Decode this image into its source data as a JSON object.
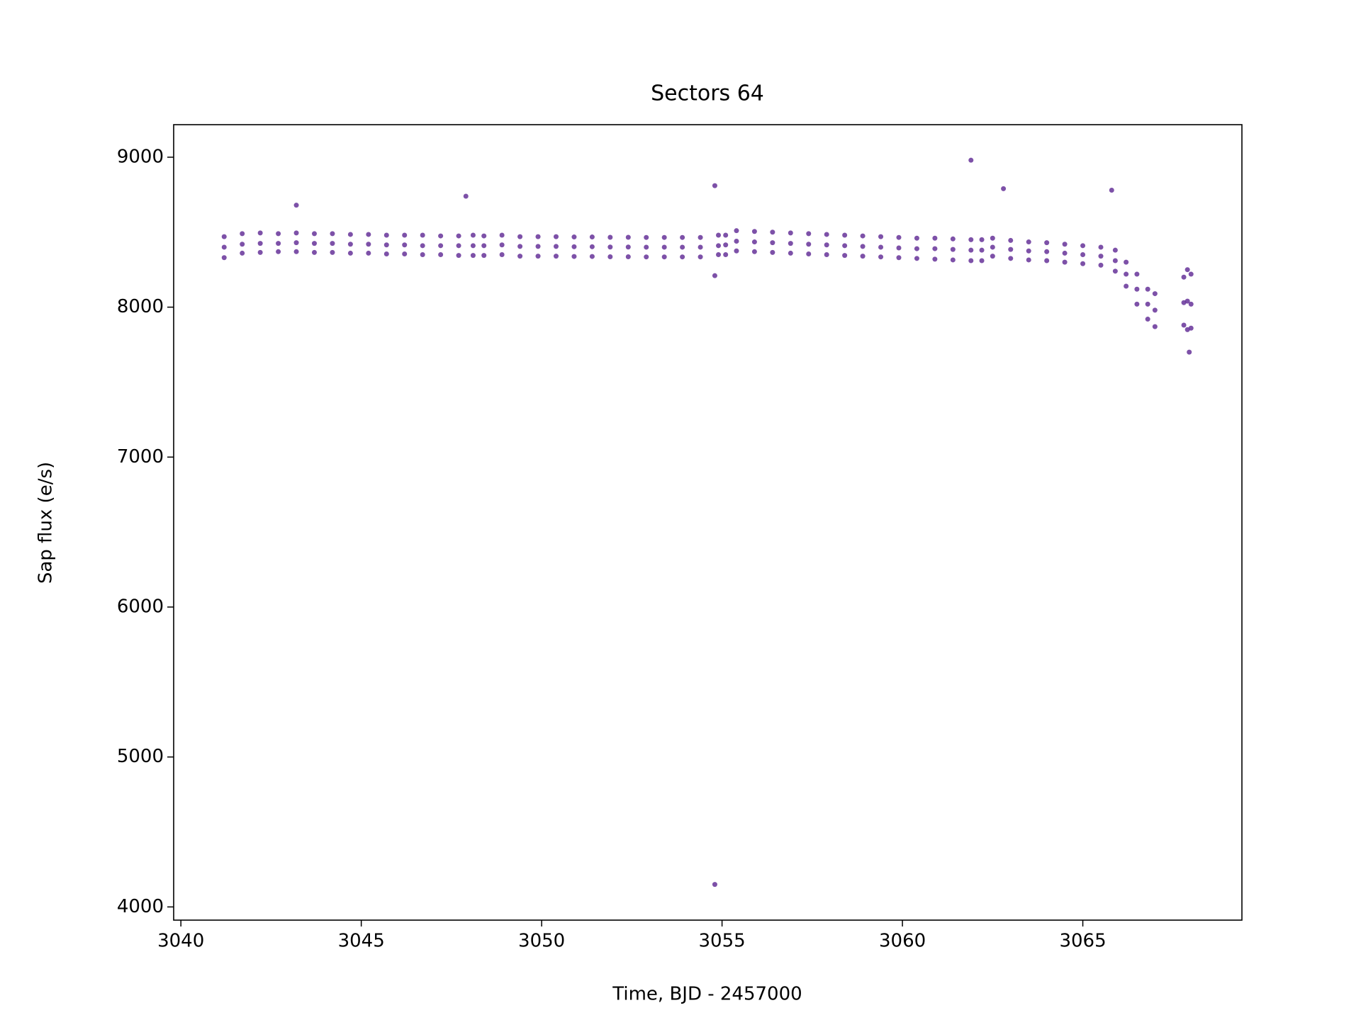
{
  "chart_data": {
    "type": "scatter",
    "title": "Sectors 64",
    "x_label": "Time, BJD - 2457000",
    "y_label": "Sap flux (e/s)",
    "xlim": [
      3039.8,
      3069.41
    ],
    "ylim": [
      3912,
      9217
    ],
    "xticks": [
      3040,
      3045,
      3050,
      3055,
      3060,
      3065
    ],
    "yticks": [
      4000,
      5000,
      6000,
      7000,
      8000,
      9000
    ],
    "color": "#663399",
    "x": [
      3041.2,
      3041.2,
      3041.2,
      3041.7,
      3041.7,
      3041.7,
      3042.2,
      3042.2,
      3042.2,
      3042.7,
      3042.7,
      3042.7,
      3043.2,
      3043.2,
      3043.2,
      3043.7,
      3043.7,
      3043.7,
      3044.2,
      3044.2,
      3044.2,
      3044.7,
      3044.7,
      3044.7,
      3045.2,
      3045.2,
      3045.2,
      3045.7,
      3045.7,
      3045.7,
      3046.2,
      3046.2,
      3046.2,
      3046.7,
      3046.7,
      3046.7,
      3047.2,
      3047.2,
      3047.2,
      3047.7,
      3047.7,
      3047.7,
      3048.1,
      3048.1,
      3048.1,
      3048.4,
      3048.4,
      3048.4,
      3048.9,
      3048.9,
      3048.9,
      3049.4,
      3049.4,
      3049.4,
      3049.9,
      3049.9,
      3049.9,
      3050.4,
      3050.4,
      3050.4,
      3050.9,
      3050.9,
      3050.9,
      3051.4,
      3051.4,
      3051.4,
      3051.9,
      3051.9,
      3051.9,
      3052.4,
      3052.4,
      3052.4,
      3052.9,
      3052.9,
      3052.9,
      3053.4,
      3053.4,
      3053.4,
      3053.9,
      3053.9,
      3053.9,
      3054.4,
      3054.4,
      3054.4,
      3054.9,
      3054.9,
      3054.9,
      3055.1,
      3055.1,
      3055.1,
      3055.4,
      3055.4,
      3055.4,
      3055.9,
      3055.9,
      3055.9,
      3056.4,
      3056.4,
      3056.4,
      3056.9,
      3056.9,
      3056.9,
      3057.4,
      3057.4,
      3057.4,
      3057.9,
      3057.9,
      3057.9,
      3058.4,
      3058.4,
      3058.4,
      3058.9,
      3058.9,
      3058.9,
      3059.4,
      3059.4,
      3059.4,
      3059.9,
      3059.9,
      3059.9,
      3060.4,
      3060.4,
      3060.4,
      3060.9,
      3060.9,
      3060.9,
      3061.4,
      3061.4,
      3061.4,
      3061.9,
      3061.9,
      3061.9,
      3062.2,
      3062.2,
      3062.2,
      3062.5,
      3062.5,
      3062.5,
      3063.0,
      3063.0,
      3063.0,
      3063.5,
      3063.5,
      3063.5,
      3064.0,
      3064.0,
      3064.0,
      3064.5,
      3064.5,
      3064.5,
      3065.0,
      3065.0,
      3065.0,
      3065.5,
      3065.5,
      3065.5,
      3065.9,
      3065.9,
      3065.9,
      3066.2,
      3066.2,
      3066.2,
      3066.5,
      3066.5,
      3066.5,
      3066.8,
      3066.8,
      3066.8,
      3067.0,
      3067.0,
      3067.0,
      3067.8,
      3067.8,
      3067.8,
      3067.9,
      3067.9,
      3067.9,
      3068.0,
      3068.0,
      3068.0,
      3054.8,
      3061.9,
      3054.8,
      3047.9,
      3043.2,
      3065.8,
      3054.8,
      3067.95,
      3062.8
    ],
    "y": [
      8470,
      8400,
      8330,
      8490,
      8420,
      8360,
      8495,
      8425,
      8365,
      8490,
      8425,
      8370,
      8495,
      8430,
      8370,
      8490,
      8425,
      8365,
      8490,
      8425,
      8365,
      8485,
      8420,
      8360,
      8485,
      8420,
      8360,
      8480,
      8415,
      8355,
      8480,
      8415,
      8355,
      8480,
      8410,
      8350,
      8475,
      8410,
      8350,
      8475,
      8410,
      8345,
      8480,
      8410,
      8345,
      8475,
      8410,
      8345,
      8480,
      8415,
      8350,
      8470,
      8405,
      8340,
      8470,
      8405,
      8340,
      8470,
      8405,
      8340,
      8468,
      8403,
      8338,
      8468,
      8403,
      8338,
      8466,
      8401,
      8336,
      8466,
      8401,
      8336,
      8465,
      8400,
      8335,
      8465,
      8400,
      8335,
      8465,
      8400,
      8335,
      8465,
      8400,
      8335,
      8480,
      8410,
      8350,
      8480,
      8415,
      8350,
      8510,
      8440,
      8375,
      8505,
      8435,
      8370,
      8500,
      8430,
      8365,
      8495,
      8425,
      8360,
      8490,
      8420,
      8355,
      8485,
      8415,
      8350,
      8480,
      8410,
      8345,
      8475,
      8405,
      8340,
      8470,
      8400,
      8335,
      8465,
      8395,
      8330,
      8460,
      8390,
      8325,
      8460,
      8390,
      8320,
      8455,
      8385,
      8315,
      8450,
      8380,
      8310,
      8450,
      8380,
      8310,
      8460,
      8400,
      8340,
      8445,
      8385,
      8325,
      8435,
      8375,
      8315,
      8430,
      8370,
      8310,
      8420,
      8360,
      8300,
      8410,
      8350,
      8290,
      8400,
      8340,
      8280,
      8380,
      8310,
      8240,
      8300,
      8220,
      8140,
      8220,
      8120,
      8020,
      8120,
      8020,
      7920,
      8090,
      7980,
      7870,
      8200,
      8030,
      7880,
      8250,
      8040,
      7850,
      8220,
      8020,
      7860,
      4150,
      8980,
      8810,
      8740,
      8680,
      8780,
      8210,
      7700,
      8790
    ]
  }
}
